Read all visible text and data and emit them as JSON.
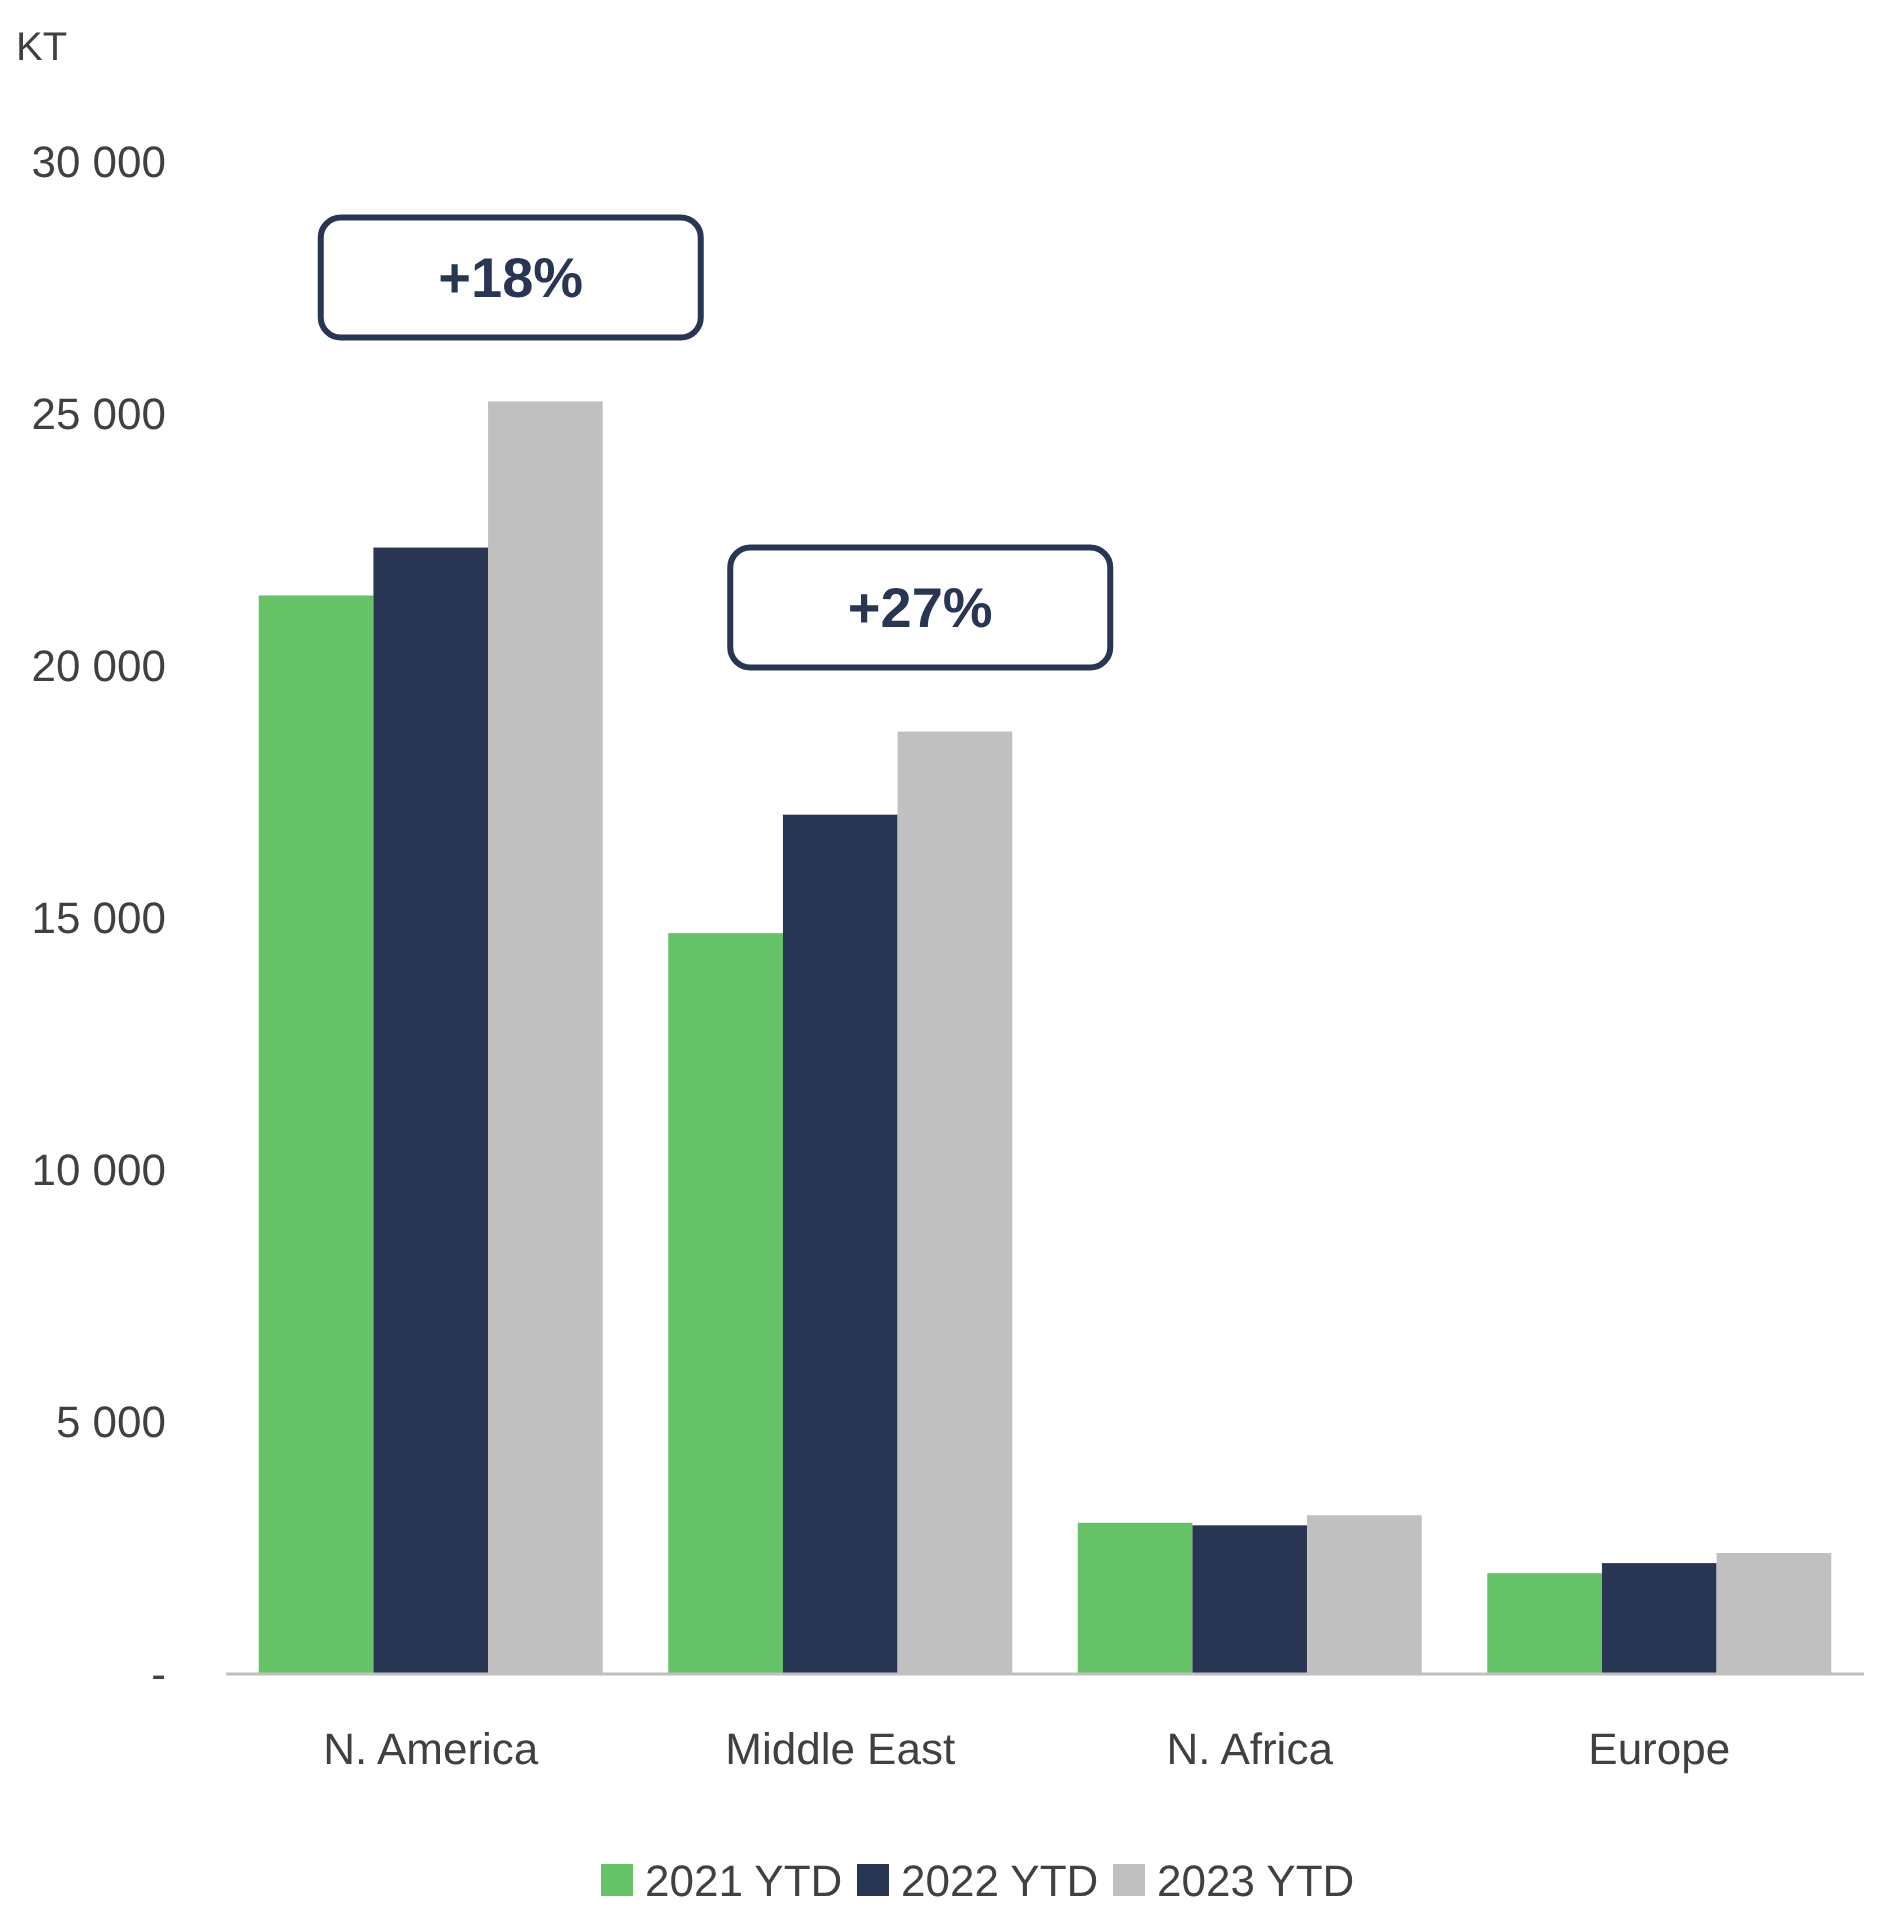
{
  "chart_data": {
    "type": "bar",
    "ylabel": "KT",
    "categories": [
      "N. America",
      "Middle East",
      "N. Africa",
      "Europe"
    ],
    "series": [
      {
        "name": "2021 YTD",
        "color": "#66c266",
        "values": [
          21400,
          14700,
          3000,
          2000
        ]
      },
      {
        "name": "2022 YTD",
        "color": "#283553",
        "values": [
          22350,
          17050,
          2950,
          2200
        ]
      },
      {
        "name": "2023 YTD",
        "color": "#c0c0c0",
        "values": [
          25250,
          18700,
          3150,
          2400
        ]
      }
    ],
    "ylim": [
      0,
      30000
    ],
    "yticks": [
      {
        "value": 0,
        "label": "-"
      },
      {
        "value": 5000,
        "label": "5 000"
      },
      {
        "value": 10000,
        "label": "10 000"
      },
      {
        "value": 15000,
        "label": "15 000"
      },
      {
        "value": 20000,
        "label": "20 000"
      },
      {
        "value": 25000,
        "label": "25 000"
      },
      {
        "value": 30000,
        "label": "30 000"
      }
    ],
    "annotations": [
      "+18%",
      "+27%"
    ],
    "grid": false,
    "legend": "bottom"
  }
}
